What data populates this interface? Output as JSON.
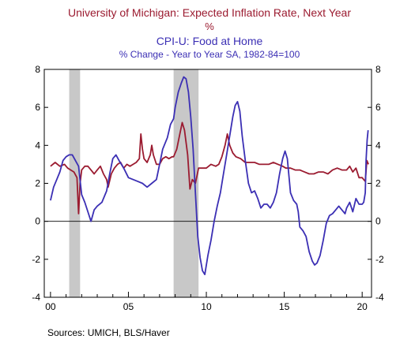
{
  "chart_data": {
    "type": "line",
    "title_lines": [
      "University of Michigan: Expected Inflation Rate, Next Year",
      "%",
      "CPI-U: Food at Home",
      "% Change - Year to Year   SA, 1982-84=100"
    ],
    "source": "Sources:  UMICH, BLS/Haver",
    "x_range": [
      1999.6,
      2020.6
    ],
    "y_range": [
      -4,
      8
    ],
    "y_ticks": [
      -4,
      -2,
      0,
      2,
      4,
      6,
      8
    ],
    "y_tick_labels": [
      "-4",
      "-2",
      "0",
      "2",
      "4",
      "6",
      "8"
    ],
    "x_tick_labels": [
      {
        "year": 2000,
        "label": "00"
      },
      {
        "year": 2005,
        "label": "05"
      },
      {
        "year": 2010,
        "label": "10"
      },
      {
        "year": 2015,
        "label": "15"
      },
      {
        "year": 2020,
        "label": "20"
      }
    ],
    "recessions": [
      [
        2001.2,
        2001.9
      ],
      [
        2007.9,
        2009.5
      ]
    ],
    "zero_line": true,
    "series": [
      {
        "name": "University of Michigan: Expected Inflation Rate, Next Year",
        "color": "#9b1b30",
        "points": [
          [
            2000.0,
            2.9
          ],
          [
            2000.3,
            3.1
          ],
          [
            2000.6,
            2.9
          ],
          [
            2000.9,
            3.0
          ],
          [
            2001.1,
            2.8
          ],
          [
            2001.3,
            2.7
          ],
          [
            2001.5,
            2.6
          ],
          [
            2001.7,
            2.3
          ],
          [
            2001.8,
            0.4
          ],
          [
            2001.9,
            2.0
          ],
          [
            2002.0,
            2.7
          ],
          [
            2002.2,
            2.9
          ],
          [
            2002.4,
            2.9
          ],
          [
            2002.6,
            2.7
          ],
          [
            2002.8,
            2.5
          ],
          [
            2003.0,
            2.7
          ],
          [
            2003.2,
            2.9
          ],
          [
            2003.4,
            2.5
          ],
          [
            2003.6,
            2.2
          ],
          [
            2003.7,
            1.8
          ],
          [
            2003.9,
            2.5
          ],
          [
            2004.1,
            2.8
          ],
          [
            2004.3,
            3.0
          ],
          [
            2004.5,
            3.1
          ],
          [
            2004.7,
            2.8
          ],
          [
            2004.9,
            3.0
          ],
          [
            2005.1,
            2.9
          ],
          [
            2005.3,
            3.0
          ],
          [
            2005.5,
            3.1
          ],
          [
            2005.7,
            3.3
          ],
          [
            2005.8,
            4.6
          ],
          [
            2005.9,
            3.8
          ],
          [
            2006.0,
            3.3
          ],
          [
            2006.2,
            3.1
          ],
          [
            2006.4,
            3.5
          ],
          [
            2006.5,
            4.0
          ],
          [
            2006.6,
            3.5
          ],
          [
            2006.8,
            3.0
          ],
          [
            2007.0,
            3.0
          ],
          [
            2007.2,
            3.3
          ],
          [
            2007.4,
            3.4
          ],
          [
            2007.6,
            3.3
          ],
          [
            2007.8,
            3.4
          ],
          [
            2007.9,
            3.4
          ],
          [
            2008.1,
            3.8
          ],
          [
            2008.3,
            4.6
          ],
          [
            2008.45,
            5.2
          ],
          [
            2008.6,
            4.8
          ],
          [
            2008.8,
            3.5
          ],
          [
            2008.95,
            1.7
          ],
          [
            2009.1,
            2.2
          ],
          [
            2009.3,
            2.0
          ],
          [
            2009.5,
            2.8
          ],
          [
            2009.7,
            2.8
          ],
          [
            2010.0,
            2.8
          ],
          [
            2010.3,
            3.0
          ],
          [
            2010.6,
            2.9
          ],
          [
            2010.8,
            3.0
          ],
          [
            2011.0,
            3.4
          ],
          [
            2011.2,
            4.0
          ],
          [
            2011.35,
            4.6
          ],
          [
            2011.5,
            4.0
          ],
          [
            2011.7,
            3.6
          ],
          [
            2011.9,
            3.4
          ],
          [
            2012.2,
            3.3
          ],
          [
            2012.5,
            3.1
          ],
          [
            2012.8,
            3.1
          ],
          [
            2013.1,
            3.1
          ],
          [
            2013.4,
            3.0
          ],
          [
            2013.7,
            3.0
          ],
          [
            2014.0,
            3.0
          ],
          [
            2014.3,
            3.1
          ],
          [
            2014.6,
            3.0
          ],
          [
            2014.9,
            2.9
          ],
          [
            2015.1,
            2.8
          ],
          [
            2015.4,
            2.8
          ],
          [
            2015.7,
            2.7
          ],
          [
            2016.0,
            2.7
          ],
          [
            2016.3,
            2.6
          ],
          [
            2016.6,
            2.5
          ],
          [
            2016.9,
            2.5
          ],
          [
            2017.2,
            2.6
          ],
          [
            2017.5,
            2.6
          ],
          [
            2017.8,
            2.5
          ],
          [
            2018.1,
            2.7
          ],
          [
            2018.4,
            2.8
          ],
          [
            2018.7,
            2.7
          ],
          [
            2019.0,
            2.7
          ],
          [
            2019.2,
            2.9
          ],
          [
            2019.4,
            2.6
          ],
          [
            2019.6,
            2.8
          ],
          [
            2019.8,
            2.3
          ],
          [
            2020.0,
            2.3
          ],
          [
            2020.1,
            2.2
          ],
          [
            2020.2,
            2.1
          ],
          [
            2020.3,
            3.2
          ],
          [
            2020.4,
            3.0
          ]
        ]
      },
      {
        "name": "CPI-U: Food at Home",
        "color": "#3b2fb4",
        "points": [
          [
            2000.0,
            1.1
          ],
          [
            2000.2,
            1.8
          ],
          [
            2000.4,
            2.2
          ],
          [
            2000.6,
            2.6
          ],
          [
            2000.8,
            3.2
          ],
          [
            2001.0,
            3.4
          ],
          [
            2001.2,
            3.5
          ],
          [
            2001.4,
            3.5
          ],
          [
            2001.6,
            3.2
          ],
          [
            2001.8,
            2.9
          ],
          [
            2002.0,
            1.4
          ],
          [
            2002.2,
            1.0
          ],
          [
            2002.4,
            0.5
          ],
          [
            2002.6,
            0.0
          ],
          [
            2002.8,
            0.6
          ],
          [
            2003.0,
            0.8
          ],
          [
            2003.3,
            1.0
          ],
          [
            2003.6,
            1.6
          ],
          [
            2003.8,
            2.5
          ],
          [
            2004.0,
            3.3
          ],
          [
            2004.2,
            3.5
          ],
          [
            2004.4,
            3.2
          ],
          [
            2004.7,
            2.8
          ],
          [
            2005.0,
            2.3
          ],
          [
            2005.3,
            2.2
          ],
          [
            2005.6,
            2.1
          ],
          [
            2005.9,
            2.0
          ],
          [
            2006.2,
            1.8
          ],
          [
            2006.5,
            2.0
          ],
          [
            2006.8,
            2.2
          ],
          [
            2007.0,
            3.0
          ],
          [
            2007.2,
            3.8
          ],
          [
            2007.5,
            4.4
          ],
          [
            2007.7,
            5.1
          ],
          [
            2007.9,
            5.4
          ],
          [
            2008.0,
            6.0
          ],
          [
            2008.2,
            6.8
          ],
          [
            2008.4,
            7.3
          ],
          [
            2008.55,
            7.6
          ],
          [
            2008.7,
            7.5
          ],
          [
            2008.85,
            6.8
          ],
          [
            2009.0,
            5.5
          ],
          [
            2009.15,
            3.8
          ],
          [
            2009.3,
            1.5
          ],
          [
            2009.45,
            -0.8
          ],
          [
            2009.6,
            -1.9
          ],
          [
            2009.75,
            -2.6
          ],
          [
            2009.9,
            -2.8
          ],
          [
            2010.1,
            -1.8
          ],
          [
            2010.3,
            -1.0
          ],
          [
            2010.5,
            0.0
          ],
          [
            2010.7,
            0.8
          ],
          [
            2010.9,
            1.5
          ],
          [
            2011.1,
            2.5
          ],
          [
            2011.3,
            3.5
          ],
          [
            2011.5,
            4.5
          ],
          [
            2011.7,
            5.5
          ],
          [
            2011.85,
            6.1
          ],
          [
            2012.0,
            6.3
          ],
          [
            2012.15,
            5.8
          ],
          [
            2012.3,
            4.5
          ],
          [
            2012.5,
            3.2
          ],
          [
            2012.7,
            2.0
          ],
          [
            2012.9,
            1.5
          ],
          [
            2013.1,
            1.6
          ],
          [
            2013.3,
            1.2
          ],
          [
            2013.5,
            0.7
          ],
          [
            2013.7,
            0.9
          ],
          [
            2013.9,
            0.9
          ],
          [
            2014.1,
            0.7
          ],
          [
            2014.3,
            1.0
          ],
          [
            2014.5,
            1.5
          ],
          [
            2014.7,
            2.5
          ],
          [
            2014.9,
            3.3
          ],
          [
            2015.05,
            3.7
          ],
          [
            2015.2,
            3.3
          ],
          [
            2015.4,
            1.5
          ],
          [
            2015.6,
            1.1
          ],
          [
            2015.8,
            0.9
          ],
          [
            2015.9,
            0.5
          ],
          [
            2016.0,
            -0.3
          ],
          [
            2016.2,
            -0.5
          ],
          [
            2016.4,
            -0.8
          ],
          [
            2016.6,
            -1.6
          ],
          [
            2016.8,
            -2.1
          ],
          [
            2016.95,
            -2.3
          ],
          [
            2017.1,
            -2.2
          ],
          [
            2017.3,
            -1.8
          ],
          [
            2017.5,
            -1.0
          ],
          [
            2017.7,
            -0.1
          ],
          [
            2017.9,
            0.3
          ],
          [
            2018.1,
            0.4
          ],
          [
            2018.3,
            0.6
          ],
          [
            2018.5,
            0.8
          ],
          [
            2018.7,
            0.6
          ],
          [
            2018.9,
            0.4
          ],
          [
            2019.0,
            0.7
          ],
          [
            2019.2,
            1.0
          ],
          [
            2019.4,
            0.5
          ],
          [
            2019.6,
            1.2
          ],
          [
            2019.8,
            0.9
          ],
          [
            2020.0,
            0.9
          ],
          [
            2020.1,
            1.0
          ],
          [
            2020.2,
            1.5
          ],
          [
            2020.25,
            3.2
          ],
          [
            2020.32,
            4.3
          ],
          [
            2020.38,
            4.8
          ]
        ]
      }
    ]
  }
}
